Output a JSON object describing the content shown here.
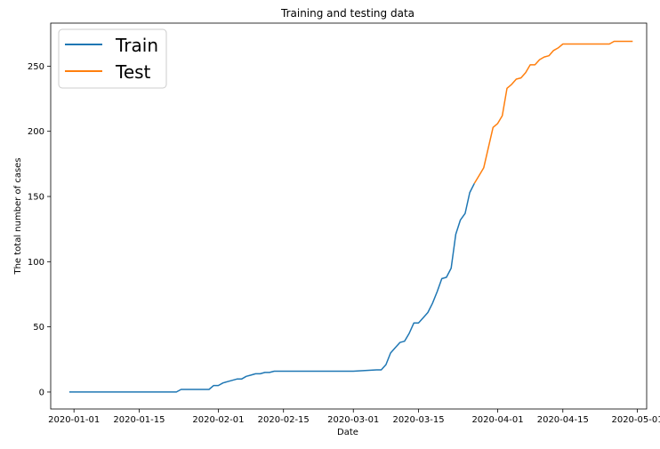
{
  "chart_data": {
    "type": "line",
    "title": "Training and testing data",
    "xlabel": "Date",
    "ylabel": "The total number of cases",
    "x_axis_type": "date",
    "xlim": [
      "2019-12-27",
      "2020-05-03"
    ],
    "ylim": [
      -13,
      283
    ],
    "xticks": [
      "2020-01-01",
      "2020-01-15",
      "2020-02-01",
      "2020-02-15",
      "2020-03-01",
      "2020-03-15",
      "2020-04-01",
      "2020-04-15",
      "2020-05-01"
    ],
    "yticks": [
      0,
      50,
      100,
      150,
      200,
      250
    ],
    "grid": false,
    "legend_position": "top-left",
    "series": [
      {
        "name": "Train",
        "color": "#1f77b4",
        "x": [
          "2019-12-31",
          "2020-01-23",
          "2020-01-24",
          "2020-01-30",
          "2020-01-31",
          "2020-02-01",
          "2020-02-02",
          "2020-02-03",
          "2020-02-05",
          "2020-02-06",
          "2020-02-07",
          "2020-02-08",
          "2020-02-09",
          "2020-02-10",
          "2020-02-11",
          "2020-02-12",
          "2020-02-13",
          "2020-03-01",
          "2020-03-06",
          "2020-03-07",
          "2020-03-08",
          "2020-03-09",
          "2020-03-10",
          "2020-03-11",
          "2020-03-12",
          "2020-03-13",
          "2020-03-14",
          "2020-03-15",
          "2020-03-16",
          "2020-03-17",
          "2020-03-18",
          "2020-03-19",
          "2020-03-20",
          "2020-03-21",
          "2020-03-22",
          "2020-03-23",
          "2020-03-24",
          "2020-03-25",
          "2020-03-26",
          "2020-03-27"
        ],
        "y": [
          0,
          0,
          2,
          2,
          5,
          5,
          7,
          8,
          10,
          10,
          12,
          13,
          14,
          14,
          15,
          15,
          16,
          16,
          17,
          17,
          21,
          30,
          34,
          38,
          39,
          45,
          53,
          53,
          57,
          61,
          68,
          77,
          87,
          88,
          95,
          121,
          132,
          137,
          153,
          160
        ]
      },
      {
        "name": "Test",
        "color": "#ff7f0e",
        "x": [
          "2020-03-27",
          "2020-03-28",
          "2020-03-29",
          "2020-03-31",
          "2020-04-01",
          "2020-04-02",
          "2020-04-03",
          "2020-04-04",
          "2020-04-05",
          "2020-04-06",
          "2020-04-07",
          "2020-04-08",
          "2020-04-09",
          "2020-04-10",
          "2020-04-11",
          "2020-04-12",
          "2020-04-13",
          "2020-04-14",
          "2020-04-15",
          "2020-04-25",
          "2020-04-26",
          "2020-04-30"
        ],
        "y": [
          160,
          166,
          172,
          203,
          206,
          212,
          233,
          236,
          240,
          241,
          245,
          251,
          251,
          255,
          257,
          258,
          262,
          264,
          267,
          267,
          269,
          269
        ]
      }
    ]
  }
}
